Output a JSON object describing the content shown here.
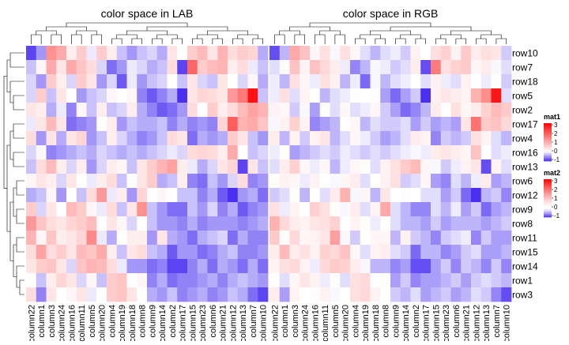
{
  "chart_data": {
    "type": "heatmap",
    "rows": [
      "row10",
      "row7",
      "row18",
      "row5",
      "row2",
      "row17",
      "row4",
      "row16",
      "row13",
      "row6",
      "row12",
      "row9",
      "row8",
      "row11",
      "row15",
      "row14",
      "row1",
      "row3"
    ],
    "columns": [
      "column22",
      "column1",
      "column3",
      "column24",
      "column16",
      "column11",
      "column5",
      "column20",
      "column4",
      "column19",
      "column18",
      "column8",
      "column9",
      "column14",
      "column2",
      "column17",
      "column15",
      "column23",
      "column6",
      "column21",
      "column12",
      "column13",
      "column7",
      "column10"
    ],
    "value_range": [
      -1,
      3
    ],
    "heatmaps": [
      {
        "title": "color space in LAB",
        "colorspace": "LAB",
        "legend_name": "mat1"
      },
      {
        "title": "color space in RGB",
        "colorspace": "RGB",
        "legend_name": "mat2"
      }
    ],
    "legends": [
      {
        "name": "mat1",
        "ticks": [
          "3",
          "2",
          "1",
          "0",
          "-1"
        ]
      },
      {
        "name": "mat2",
        "ticks": [
          "3",
          "2",
          "1",
          "0",
          "-1"
        ]
      }
    ],
    "colors": {
      "low": "#4a2ff0",
      "mid": "#ffffff",
      "high": "#ff0000"
    },
    "values": [
      [
        -0.9,
        -0.5,
        1.3,
        1.0,
        0.2,
        0.6,
        -0.1,
        0.6,
        0.2,
        -0.3,
        -0.5,
        -0.3,
        -0.2,
        -0.4,
        0.3,
        0.0,
        0.6,
        0.8,
        0.3,
        0.9,
        0.4,
        0.6,
        0.5,
        -0.4
      ],
      [
        -0.3,
        0.1,
        1.0,
        0.3,
        1.0,
        0.7,
        0.4,
        -0.2,
        -0.7,
        -0.5,
        -0.1,
        -0.2,
        -0.4,
        -0.3,
        0.4,
        -0.9,
        1.8,
        0.6,
        0.8,
        0.9,
        0.2,
        0.4,
        -0.1,
        -0.3
      ],
      [
        -0.2,
        -0.5,
        0.6,
        0.2,
        -0.2,
        0.6,
        0.3,
        -0.5,
        -0.2,
        -0.8,
        -0.1,
        -0.5,
        -0.3,
        -0.2,
        0.0,
        -0.3,
        0.3,
        -0.2,
        -0.3,
        0.3,
        0.0,
        -0.2,
        0.1,
        -0.4
      ],
      [
        -0.2,
        0.6,
        -0.3,
        0.3,
        0.0,
        -0.5,
        -0.3,
        -0.2,
        0.1,
        0.0,
        0.1,
        -0.6,
        -0.8,
        -0.6,
        -0.4,
        -1.0,
        0.3,
        0.5,
        0.4,
        0.3,
        1.2,
        1.6,
        2.8,
        -0.3
      ],
      [
        0.3,
        0.2,
        -0.4,
        -0.1,
        -0.6,
        0.1,
        -0.3,
        0.2,
        -0.3,
        -0.2,
        0.2,
        -0.4,
        -0.6,
        -0.8,
        -0.7,
        -0.5,
        0.4,
        0.0,
        0.6,
        0.2,
        0.4,
        0.8,
        1.1,
        0.9
      ],
      [
        -0.1,
        0.3,
        0.8,
        0.3,
        -0.7,
        -0.6,
        -0.5,
        0.0,
        0.2,
        -0.5,
        -0.3,
        -0.4,
        -0.4,
        -0.3,
        -0.6,
        -0.4,
        -0.6,
        -0.5,
        -0.6,
        0.5,
        1.9,
        0.9,
        1.0,
        0.7
      ],
      [
        0.4,
        -0.5,
        0.3,
        -0.4,
        0.3,
        0.5,
        -0.5,
        -0.3,
        0.2,
        -0.2,
        -0.4,
        -0.6,
        -0.5,
        -0.3,
        0.4,
        0.3,
        -0.7,
        -0.4,
        -0.5,
        -0.4,
        0.6,
        0.3,
        -0.3,
        -0.5
      ],
      [
        -0.2,
        0.1,
        -0.6,
        -0.5,
        -0.4,
        -0.3,
        -0.4,
        -0.2,
        -0.3,
        -0.4,
        -0.3,
        -0.4,
        -0.3,
        -0.2,
        -0.1,
        -0.2,
        0.4,
        0.5,
        0.4,
        0.2,
        1.0,
        0.0,
        -0.3,
        -0.2
      ],
      [
        -0.3,
        0.4,
        0.8,
        0.2,
        -0.2,
        0.2,
        -0.5,
        -0.2,
        0.2,
        0.1,
        -0.3,
        0.3,
        0.6,
        0.9,
        1.1,
        0.2,
        -0.1,
        -0.4,
        -0.2,
        0.3,
        0.5,
        -0.9,
        0.3,
        -0.3
      ],
      [
        0.1,
        0.3,
        0.2,
        -0.2,
        0.3,
        0.0,
        -0.1,
        0.2,
        0.4,
        -0.3,
        0.0,
        0.3,
        0.6,
        -0.4,
        -0.3,
        0.2,
        -0.6,
        -0.7,
        -0.3,
        -0.5,
        -0.2,
        0.4,
        -0.6,
        -0.5
      ],
      [
        -0.4,
        -0.3,
        0.1,
        -0.5,
        0.0,
        -0.3,
        0.4,
        1.2,
        -0.1,
        0.2,
        -0.5,
        0.5,
        0.0,
        0.1,
        0.0,
        -0.3,
        -0.3,
        -0.6,
        -0.4,
        -0.8,
        -1.0,
        -0.5,
        -0.4,
        -0.7
      ],
      [
        0.6,
        -0.2,
        0.3,
        0.0,
        0.8,
        0.6,
        0.1,
        -0.1,
        0.4,
        -0.3,
        0.3,
        1.3,
        -0.3,
        -0.5,
        -0.7,
        -0.7,
        -0.3,
        -0.5,
        -0.2,
        -0.6,
        -0.4,
        -0.8,
        -0.6,
        -0.5
      ],
      [
        1.2,
        0.7,
        0.4,
        0.3,
        0.5,
        0.6,
        0.8,
        0.0,
        0.3,
        0.1,
        -0.2,
        0.0,
        -0.3,
        -0.5,
        -0.5,
        -0.6,
        -0.4,
        -0.6,
        -0.5,
        -0.5,
        -0.5,
        -0.6,
        -0.5,
        -0.4
      ],
      [
        0.9,
        0.1,
        0.7,
        0.2,
        0.3,
        0.5,
        1.4,
        -0.1,
        -0.4,
        0.0,
        0.2,
        0.2,
        -0.5,
        0.3,
        -0.4,
        -0.5,
        -0.7,
        -0.4,
        -0.3,
        -0.2,
        -0.7,
        -0.4,
        -0.6,
        -0.6
      ],
      [
        0.4,
        1.1,
        0.4,
        0.6,
        0.3,
        0.8,
        0.7,
        1.0,
        0.2,
        -0.3,
        0.3,
        0.4,
        -0.3,
        -0.4,
        -0.8,
        -0.5,
        -0.5,
        -0.7,
        -0.6,
        -0.4,
        -0.3,
        -0.6,
        -0.6,
        -0.5
      ],
      [
        0.3,
        0.6,
        0.7,
        0.3,
        -0.2,
        0.7,
        0.9,
        0.8,
        0.4,
        -0.1,
        -0.5,
        -0.5,
        -0.7,
        -0.6,
        -0.9,
        -0.9,
        -0.6,
        -0.4,
        -0.7,
        -0.4,
        -0.5,
        -0.7,
        -0.4,
        -0.7
      ],
      [
        0.0,
        -0.3,
        0.2,
        0.5,
        0.3,
        -0.2,
        0.1,
        -0.3,
        0.6,
        0.7,
        0.0,
        0.1,
        -0.6,
        -0.4,
        -0.7,
        -0.6,
        -0.6,
        -0.5,
        -0.4,
        -0.6,
        -0.4,
        -0.3,
        -0.4,
        -0.5
      ],
      [
        0.4,
        -0.6,
        0.3,
        0.0,
        0.1,
        0.3,
        -0.1,
        0.0,
        0.6,
        0.7,
        0.3,
        0.0,
        -0.4,
        -0.5,
        -0.3,
        -0.6,
        -0.5,
        -0.4,
        -0.6,
        -0.5,
        -0.3,
        -0.4,
        -0.7,
        -0.9
      ]
    ]
  }
}
